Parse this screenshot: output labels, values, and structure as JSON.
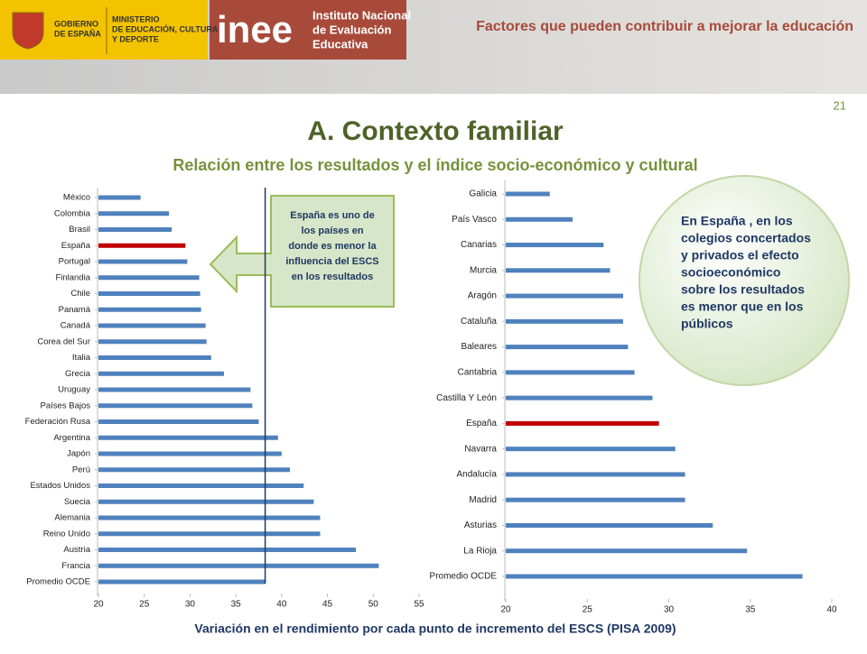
{
  "header": {
    "government": [
      "GOBIERNO",
      "DE ESPAÑA"
    ],
    "ministry": [
      "MINISTERIO",
      "DE EDUCACIÓN, CULTURA",
      "Y DEPORTE"
    ],
    "logo": "inee",
    "institute": [
      "Instituto Nacional",
      "de Evaluación",
      "Educativa"
    ],
    "title": "Factores que pueden contribuir a mejorar la educación",
    "page_number": "21"
  },
  "title": "A. Contexto familiar",
  "subtitle": "Relación entre los resultados y el índice socio-económico y cultural",
  "callout": [
    "España es uno de",
    "los países en",
    "donde es menor la",
    "influencia del ESCS",
    "en los resultados"
  ],
  "note": [
    "En España , en los",
    "colegios concertados",
    "y privados el efecto",
    "socioeconómico",
    "sobre los resultados",
    "es menor que en los",
    "públicos"
  ],
  "x_axis_label": "Variación en el rendimiento por cada punto de incremento del ESCS (PISA 2009)",
  "chart_data": [
    {
      "type": "hbar",
      "categories": [
        "México",
        "Colombia",
        "Brasil",
        "España",
        "Portugal",
        "Finlandia",
        "Chile",
        "Panamá",
        "Canadá",
        "Corea del Sur",
        "Italia",
        "Grecia",
        "Uruguay",
        "Países Bajos",
        "Federación Rusa",
        "Argentina",
        "Japón",
        "Perú",
        "Estados Unidos",
        "Suecia",
        "Alemania",
        "Reino Unido",
        "Austria",
        "Francia",
        "Promedio OCDE"
      ],
      "values": [
        24.6,
        27.7,
        28.0,
        29.5,
        29.7,
        31.0,
        31.1,
        31.2,
        31.7,
        31.8,
        32.3,
        33.7,
        36.6,
        36.8,
        37.5,
        39.6,
        40.0,
        40.9,
        42.4,
        43.5,
        44.2,
        44.2,
        48.1,
        50.6,
        38.2
      ],
      "colors": [
        "#4f81bd",
        "#4f81bd",
        "#4f81bd",
        "#c00000",
        "#4f81bd",
        "#4f81bd",
        "#4f81bd",
        "#4f81bd",
        "#4f81bd",
        "#4f81bd",
        "#4f81bd",
        "#4f81bd",
        "#4f81bd",
        "#4f81bd",
        "#4f81bd",
        "#4f81bd",
        "#4f81bd",
        "#4f81bd",
        "#4f81bd",
        "#4f81bd",
        "#4f81bd",
        "#4f81bd",
        "#4f81bd",
        "#4f81bd",
        "#4f81bd"
      ],
      "xlim": [
        20,
        55
      ],
      "xticks": [
        20,
        25,
        30,
        35,
        40,
        45,
        50,
        55
      ],
      "reference_line": true
    },
    {
      "type": "hbar",
      "categories": [
        "Galicia",
        "País Vasco",
        "Canarias",
        "Murcia",
        "Aragón",
        "Cataluña",
        "Baleares",
        "Cantabria",
        "Castilla Y León",
        "España",
        "Navarra",
        "Andalucía",
        "Madrid",
        "Asturias",
        "La Rioja",
        "Promedio OCDE"
      ],
      "values": [
        22.7,
        24.1,
        26.0,
        26.4,
        27.2,
        27.2,
        27.5,
        27.9,
        29.0,
        29.4,
        30.4,
        31.0,
        31.0,
        32.7,
        34.8,
        38.2
      ],
      "colors": [
        "#4f81bd",
        "#4f81bd",
        "#4f81bd",
        "#4f81bd",
        "#4f81bd",
        "#4f81bd",
        "#4f81bd",
        "#4f81bd",
        "#4f81bd",
        "#c00000",
        "#4f81bd",
        "#4f81bd",
        "#4f81bd",
        "#4f81bd",
        "#4f81bd",
        "#4f81bd"
      ],
      "xlim": [
        20,
        40
      ],
      "xticks": [
        20,
        25,
        30,
        35,
        40
      ],
      "reference_line": false
    }
  ]
}
